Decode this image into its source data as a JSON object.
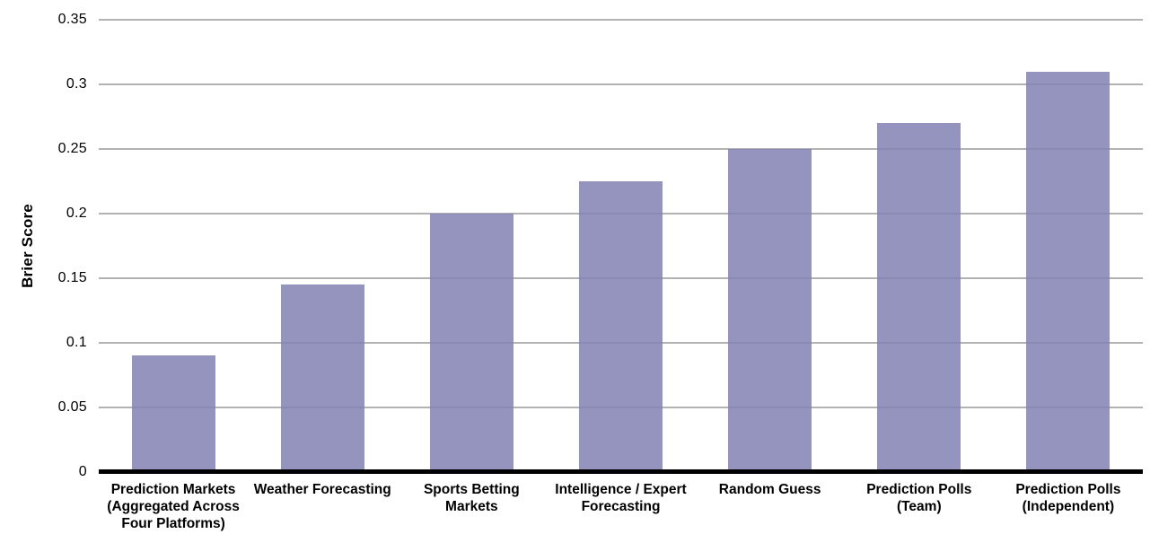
{
  "chart_data": {
    "type": "bar",
    "title": "",
    "xlabel": "",
    "ylabel": "Brier Score",
    "categories": [
      "Prediction Markets (Aggregated Across Four Platforms)",
      "Weather Forecasting",
      "Sports Betting Markets",
      "Intelligence / Expert Forecasting",
      "Random Guess",
      "Prediction Polls (Team)",
      "Prediction Polls (Independent)"
    ],
    "category_lines": [
      [
        "Prediction Markets",
        "(Aggregated Across",
        "Four Platforms)"
      ],
      [
        "Weather Forecasting"
      ],
      [
        "Sports Betting",
        "Markets"
      ],
      [
        "Intelligence / Expert",
        "Forecasting"
      ],
      [
        "Random Guess"
      ],
      [
        "Prediction Polls",
        "(Team)"
      ],
      [
        "Prediction Polls",
        "(Independent)"
      ]
    ],
    "values": [
      0.09,
      0.145,
      0.2,
      0.225,
      0.25,
      0.27,
      0.31
    ],
    "ylim": [
      0,
      0.35
    ],
    "ytick_labels": [
      "0",
      "0.05",
      "0.1",
      "0.15",
      "0.2",
      "0.25",
      "0.3",
      "0.35"
    ],
    "ytick_values": [
      0,
      0.05,
      0.1,
      0.15,
      0.2,
      0.25,
      0.3,
      0.35
    ],
    "grid": true,
    "legend": false,
    "colors": {
      "bar": "#8181b3",
      "gridline": "#b2b2b2",
      "axis": "#000000",
      "text": "#000000",
      "background": "#ffffff"
    }
  }
}
